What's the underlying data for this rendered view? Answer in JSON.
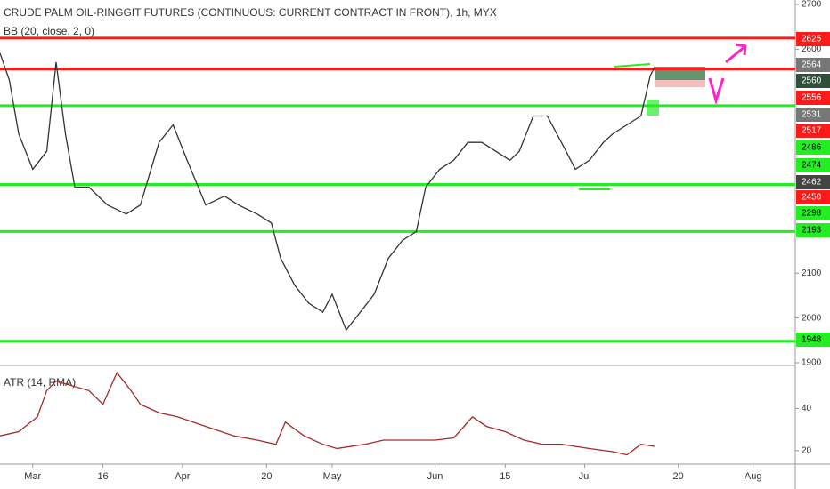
{
  "header": {
    "title": "CRUDE PALM OIL-RINGGIT FUTURES (CONTINUOUS: CURRENT CONTRACT IN FRONT), 1h, MYX",
    "indicator": "BB (20, close, 2, 0)"
  },
  "chart_data": [
    {
      "type": "line",
      "color": "#333333",
      "x": [
        0,
        2,
        4,
        7,
        10,
        12,
        14,
        16,
        19,
        23,
        27,
        30,
        34,
        37,
        40,
        44,
        48,
        51,
        55,
        58,
        60,
        63,
        66,
        69,
        71,
        74,
        77,
        80,
        83,
        86,
        89,
        91,
        94,
        97,
        100,
        103,
        106,
        109,
        111,
        114,
        117,
        120,
        123,
        126,
        129,
        131,
        134,
        137,
        139,
        140
      ],
      "values": [
        2591,
        2531,
        2411,
        2332,
        2372,
        2571,
        2411,
        2292,
        2292,
        2252,
        2232,
        2252,
        2392,
        2431,
        2352,
        2252,
        2272,
        2252,
        2232,
        2212,
        2133,
        2073,
        2033,
        2013,
        2053,
        1973,
        2013,
        2053,
        2133,
        2173,
        2193,
        2292,
        2332,
        2352,
        2392,
        2392,
        2372,
        2352,
        2372,
        2451,
        2451,
        2392,
        2332,
        2352,
        2392,
        2411,
        2431,
        2451,
        2541,
        2561
      ],
      "xlim": [
        0,
        170
      ],
      "ylim": [
        1894,
        2710
      ],
      "yticks": [
        1900,
        2000,
        2100,
        2600,
        2700
      ],
      "levels": [
        {
          "value": 2625,
          "color": "#ff1a1a"
        },
        {
          "value": 2556,
          "color": "#ff1a1a"
        },
        {
          "value": 2474,
          "color": "#22ee22"
        },
        {
          "value": 2298,
          "color": "#22ee22"
        },
        {
          "value": 2193,
          "color": "#22ee22"
        },
        {
          "value": 1948,
          "color": "#22ee22"
        }
      ],
      "price_labels": [
        {
          "value": 2625,
          "color": "#ff1a1a"
        },
        {
          "value": 2564,
          "color": "#777777"
        },
        {
          "value": 2560,
          "color": "#2f4f3a"
        },
        {
          "value": 2556,
          "color": "#ff1a1a"
        },
        {
          "value": 2531,
          "color": "#777777"
        },
        {
          "value": 2517,
          "color": "#ff1a1a"
        },
        {
          "value": 2486,
          "color": "#22ee22"
        },
        {
          "value": 2474,
          "color": "#22ee22"
        },
        {
          "value": 2462,
          "color": "#444444"
        },
        {
          "value": 2450,
          "color": "#ff1a1a"
        },
        {
          "value": 2298,
          "color": "#22ee22"
        },
        {
          "value": 2193,
          "color": "#22ee22"
        },
        {
          "value": 1948,
          "color": "#22ee22"
        }
      ]
    },
    {
      "type": "line",
      "title": "ATR (14, RMA)",
      "color": "#a52a2a",
      "x": [
        0,
        4,
        8,
        10,
        12,
        15,
        19,
        22,
        25,
        28,
        30,
        34,
        38,
        44,
        50,
        55,
        59,
        61,
        65,
        69,
        72,
        78,
        82,
        88,
        93,
        97,
        101,
        104,
        108,
        112,
        116,
        120,
        126,
        131,
        134,
        137,
        140
      ],
      "values": [
        27,
        29,
        36,
        48.5,
        53,
        51,
        48.5,
        42,
        57,
        48.5,
        42,
        38,
        36,
        31.5,
        27,
        25,
        23,
        33.5,
        27,
        23,
        21,
        23,
        25,
        25,
        25,
        26,
        36,
        31.5,
        29,
        25,
        23,
        23,
        21,
        19.5,
        18,
        23,
        22
      ],
      "xlim": [
        0,
        170
      ],
      "ylim": [
        13.6,
        60
      ],
      "yticks": [
        20,
        40
      ],
      "xticks": [
        {
          "value": 7,
          "label": "Mar"
        },
        {
          "value": 22,
          "label": "16"
        },
        {
          "value": 39,
          "label": "Apr"
        },
        {
          "value": 57,
          "label": "20"
        },
        {
          "value": 71,
          "label": "May"
        },
        {
          "value": 93,
          "label": "Jun"
        },
        {
          "value": 108,
          "label": "15"
        },
        {
          "value": 125,
          "label": "Jul"
        },
        {
          "value": 145,
          "label": "20"
        },
        {
          "value": 161,
          "label": "Aug"
        }
      ]
    }
  ]
}
